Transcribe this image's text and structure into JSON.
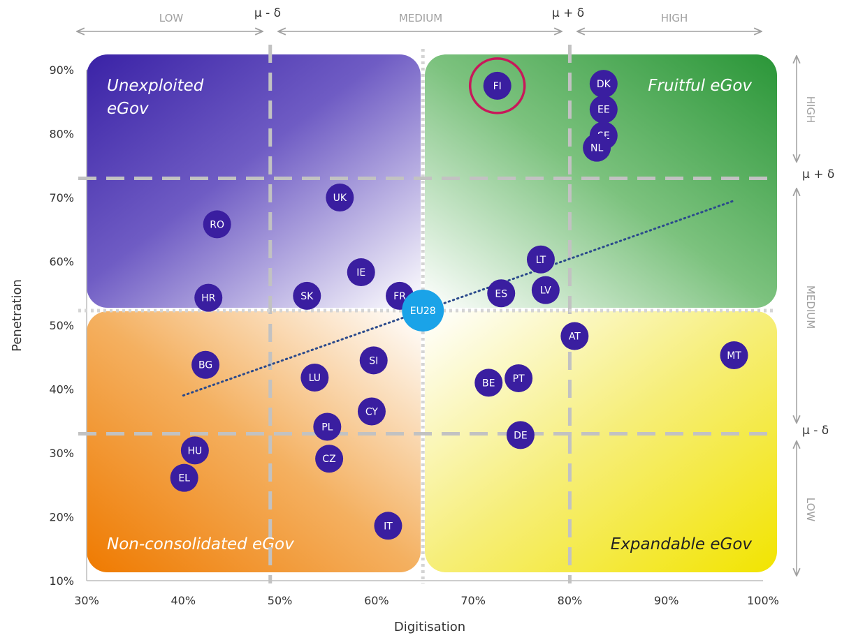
{
  "chart_data": {
    "type": "scatter",
    "xlabel": "Digitisation",
    "ylabel": "Penetration",
    "xlim": [
      30,
      100
    ],
    "ylim": [
      10,
      90
    ],
    "x_ticks": [
      "30%",
      "40%",
      "50%",
      "60%",
      "70%",
      "80%",
      "90%",
      "100%"
    ],
    "y_ticks": [
      "10%",
      "20%",
      "30%",
      "40%",
      "50%",
      "60%",
      "70%",
      "80%",
      "90%"
    ],
    "x_bands": [
      "LOW",
      "MEDIUM",
      "HIGH"
    ],
    "y_bands": [
      "HIGH",
      "MEDIUM",
      "LOW"
    ],
    "mu_minus_label": "μ - δ",
    "mu_plus_label": "μ + δ",
    "thresholds": {
      "x_mu_minus": 49,
      "x_mu_plus": 80,
      "x_mean": 64.8,
      "y_mu_plus": 73,
      "y_mu_minus": 33,
      "y_mean": 52.3
    },
    "quadrants": {
      "top_left": [
        "Unexploited",
        "eGov"
      ],
      "top_right": "Fruitful eGov",
      "bottom_left": "Non-consolidated eGov",
      "bottom_right": "Expandable eGov"
    },
    "trendline": {
      "x": [
        40,
        97
      ],
      "y": [
        39,
        69.5
      ]
    },
    "highlighted": "FI",
    "points": [
      {
        "label": "FI",
        "x": 72.5,
        "y": 87.5
      },
      {
        "label": "DK",
        "x": 83.5,
        "y": 87.8
      },
      {
        "label": "EE",
        "x": 83.5,
        "y": 83.8
      },
      {
        "label": "SE",
        "x": 83.5,
        "y": 79.7
      },
      {
        "label": "NL",
        "x": 82.8,
        "y": 77.8
      },
      {
        "label": "UK",
        "x": 56.2,
        "y": 70.0
      },
      {
        "label": "RO",
        "x": 43.5,
        "y": 65.8
      },
      {
        "label": "LT",
        "x": 77.0,
        "y": 60.3
      },
      {
        "label": "IE",
        "x": 58.4,
        "y": 58.3
      },
      {
        "label": "ES",
        "x": 72.9,
        "y": 55.0
      },
      {
        "label": "LV",
        "x": 77.5,
        "y": 55.5
      },
      {
        "label": "HR",
        "x": 42.6,
        "y": 54.3
      },
      {
        "label": "SK",
        "x": 52.8,
        "y": 54.6
      },
      {
        "label": "FR",
        "x": 62.4,
        "y": 54.6
      },
      {
        "label": "AT",
        "x": 80.5,
        "y": 48.3
      },
      {
        "label": "MT",
        "x": 97.0,
        "y": 45.3
      },
      {
        "label": "SI",
        "x": 59.7,
        "y": 44.5
      },
      {
        "label": "BG",
        "x": 42.3,
        "y": 43.8
      },
      {
        "label": "LU",
        "x": 53.6,
        "y": 41.8
      },
      {
        "label": "BE",
        "x": 71.6,
        "y": 41.0
      },
      {
        "label": "PT",
        "x": 74.7,
        "y": 41.7
      },
      {
        "label": "CY",
        "x": 59.5,
        "y": 36.5
      },
      {
        "label": "PL",
        "x": 54.9,
        "y": 34.1
      },
      {
        "label": "DE",
        "x": 74.9,
        "y": 32.8
      },
      {
        "label": "HU",
        "x": 41.2,
        "y": 30.4
      },
      {
        "label": "CZ",
        "x": 55.1,
        "y": 29.1
      },
      {
        "label": "EL",
        "x": 40.1,
        "y": 26.1
      },
      {
        "label": "IT",
        "x": 61.2,
        "y": 18.6
      }
    ],
    "eu_point": {
      "label": "EU28",
      "x": 64.8,
      "y": 52.3
    }
  },
  "colors": {
    "dot": "#3a1ea0",
    "eu_dot": "#1aa3e8",
    "highlight_ring": "#c8185a",
    "trend": "#2b4a8c",
    "unexploited": "#3a26a8",
    "fruitful": "#2e9a3c",
    "nonconsolidated": "#ef7d00",
    "expandable": "#f2e600"
  }
}
